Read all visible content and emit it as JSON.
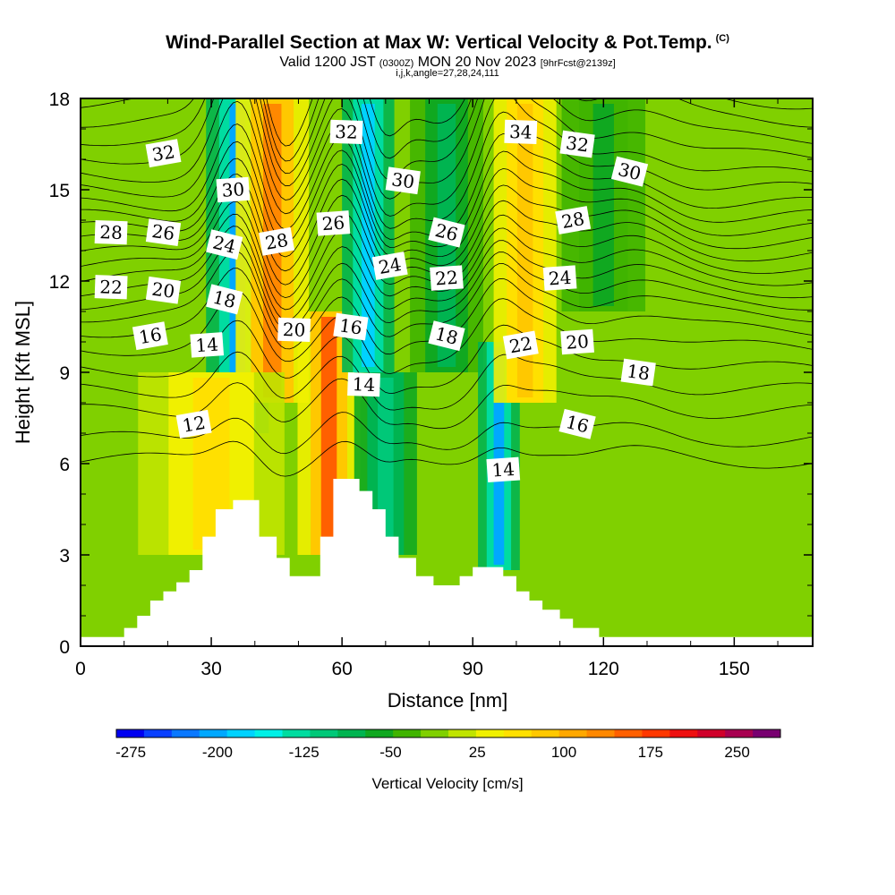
{
  "header": {
    "title": "Wind-Parallel Section at Max W: Vertical Velocity & Pot.Temp.",
    "copyright": "(C)",
    "valid_prefix": "Valid 1200 JST",
    "valid_utc": "(0300Z)",
    "valid_date": "MON 20 Nov 2023",
    "forecast": "[9hrFcst@2139z]",
    "indices": "i,j,k,angle=27,28,24,111"
  },
  "chart_data": {
    "type": "contour",
    "xlabel": "Distance [nm]",
    "ylabel": "Height [Kft MSL]",
    "xlim": [
      0,
      168
    ],
    "ylim": [
      0,
      18
    ],
    "x_ticks": [
      "0",
      "30",
      "60",
      "90",
      "120",
      "150"
    ],
    "y_ticks": [
      "0",
      "3",
      "6",
      "9",
      "12",
      "15",
      "18"
    ],
    "x_tick_values": [
      0,
      30,
      60,
      90,
      120,
      150
    ],
    "y_tick_values": [
      0,
      3,
      6,
      9,
      12,
      15,
      18
    ],
    "colorbar": {
      "title": "Vertical Velocity [cm/s]",
      "labels": [
        "-275",
        "-200",
        "-125",
        "-50",
        "25",
        "100",
        "175",
        "250"
      ],
      "label_values": [
        -275,
        -200,
        -125,
        -50,
        25,
        100,
        175,
        250
      ],
      "min": -287.5,
      "max": 287.5,
      "step": 25,
      "colors": [
        "#0000f0",
        "#0a40ff",
        "#0a78ff",
        "#00a8ff",
        "#00d2ff",
        "#00f0e6",
        "#00dca0",
        "#00c878",
        "#00b450",
        "#10a820",
        "#40b400",
        "#80d000",
        "#c0e400",
        "#f0f000",
        "#ffe000",
        "#ffc800",
        "#ffa800",
        "#ff8800",
        "#ff6000",
        "#ff3800",
        "#ee1010",
        "#d0002a",
        "#a80050",
        "#780070"
      ]
    },
    "terrain_profile": [
      [
        0,
        0.3
      ],
      [
        10,
        0.3
      ],
      [
        10,
        0.6
      ],
      [
        13,
        0.6
      ],
      [
        13,
        1.0
      ],
      [
        16,
        1.0
      ],
      [
        16,
        1.5
      ],
      [
        19,
        1.5
      ],
      [
        19,
        1.8
      ],
      [
        22,
        1.8
      ],
      [
        22,
        2.1
      ],
      [
        25,
        2.1
      ],
      [
        25,
        2.5
      ],
      [
        28,
        2.5
      ],
      [
        28,
        3.6
      ],
      [
        31,
        3.6
      ],
      [
        31,
        4.5
      ],
      [
        35,
        4.5
      ],
      [
        35,
        4.8
      ],
      [
        41,
        4.8
      ],
      [
        41,
        3.6
      ],
      [
        45,
        3.6
      ],
      [
        45,
        2.9
      ],
      [
        48,
        2.9
      ],
      [
        48,
        2.3
      ],
      [
        55,
        2.3
      ],
      [
        55,
        3.6
      ],
      [
        58,
        3.6
      ],
      [
        58,
        5.5
      ],
      [
        64,
        5.5
      ],
      [
        64,
        5.1
      ],
      [
        67,
        5.1
      ],
      [
        67,
        4.5
      ],
      [
        70,
        4.5
      ],
      [
        70,
        3.6
      ],
      [
        73,
        3.6
      ],
      [
        73,
        2.9
      ],
      [
        77,
        2.9
      ],
      [
        77,
        2.3
      ],
      [
        81,
        2.3
      ],
      [
        81,
        2.0
      ],
      [
        87,
        2.0
      ],
      [
        87,
        2.3
      ],
      [
        90,
        2.3
      ],
      [
        90,
        2.6
      ],
      [
        97,
        2.6
      ],
      [
        97,
        2.3
      ],
      [
        100,
        2.3
      ],
      [
        100,
        1.8
      ],
      [
        103,
        1.8
      ],
      [
        103,
        1.5
      ],
      [
        106,
        1.5
      ],
      [
        106,
        1.2
      ],
      [
        110,
        1.2
      ],
      [
        110,
        0.9
      ],
      [
        113,
        0.9
      ],
      [
        113,
        0.6
      ],
      [
        119,
        0.6
      ],
      [
        119,
        0.3
      ],
      [
        168,
        0.3
      ]
    ],
    "vertical_velocity_bands": [
      {
        "x": 36,
        "w": 6,
        "value": -195,
        "z0": 7,
        "z1": 18
      },
      {
        "x": 44,
        "w": 7,
        "value": 140,
        "z0": 8,
        "z1": 18
      },
      {
        "x": 57,
        "w": 6,
        "value": 165,
        "z0": 3,
        "z1": 11
      },
      {
        "x": 66,
        "w": 5,
        "value": -180,
        "z0": 9,
        "z1": 18
      },
      {
        "x": 70,
        "w": 6,
        "value": -110,
        "z0": 3,
        "z1": 9
      },
      {
        "x": 84,
        "w": 7,
        "value": -75,
        "z0": 9,
        "z1": 18
      },
      {
        "x": 96,
        "w": 4,
        "value": -190,
        "z0": 2.5,
        "z1": 10
      },
      {
        "x": 102,
        "w": 6,
        "value": 110,
        "z0": 8,
        "z1": 18
      },
      {
        "x": 30,
        "w": 14,
        "value": 85,
        "z0": 3,
        "z1": 9
      },
      {
        "x": 120,
        "w": 8,
        "value": -50,
        "z0": 11,
        "z1": 18
      }
    ],
    "theta_contours": [
      {
        "value": 12,
        "base": 6.1
      },
      {
        "value": 13,
        "base": 6.8
      },
      {
        "value": 14,
        "base": 7.7
      },
      {
        "value": 15,
        "base": 8.4
      },
      {
        "value": 16,
        "base": 9.1
      },
      {
        "value": 17,
        "base": 9.8
      },
      {
        "value": 18,
        "base": 10.4
      },
      {
        "value": 19,
        "base": 10.9
      },
      {
        "value": 20,
        "base": 11.3
      },
      {
        "value": 21,
        "base": 11.7
      },
      {
        "value": 22,
        "base": 12.1
      },
      {
        "value": 23,
        "base": 12.5
      },
      {
        "value": 24,
        "base": 12.9
      },
      {
        "value": 25,
        "base": 13.3
      },
      {
        "value": 26,
        "base": 13.7
      },
      {
        "value": 27,
        "base": 14.1
      },
      {
        "value": 28,
        "base": 14.5
      },
      {
        "value": 29,
        "base": 15.0
      },
      {
        "value": 30,
        "base": 15.5
      },
      {
        "value": 31,
        "base": 16.1
      },
      {
        "value": 32,
        "base": 16.7
      },
      {
        "value": 33,
        "base": 17.3
      },
      {
        "value": 34,
        "base": 17.9
      }
    ],
    "contour_labels": [
      {
        "text": "32",
        "x": 19,
        "z": 16.2
      },
      {
        "text": "30",
        "x": 35,
        "z": 15.0
      },
      {
        "text": "28",
        "x": 7,
        "z": 13.6
      },
      {
        "text": "26",
        "x": 19,
        "z": 13.6
      },
      {
        "text": "24",
        "x": 33,
        "z": 13.2
      },
      {
        "text": "28",
        "x": 45,
        "z": 13.3
      },
      {
        "text": "26",
        "x": 58,
        "z": 13.9
      },
      {
        "text": "32",
        "x": 61,
        "z": 16.9
      },
      {
        "text": "30",
        "x": 74,
        "z": 15.3
      },
      {
        "text": "26",
        "x": 84,
        "z": 13.6
      },
      {
        "text": "24",
        "x": 71,
        "z": 12.5
      },
      {
        "text": "22",
        "x": 84,
        "z": 12.1
      },
      {
        "text": "34",
        "x": 101,
        "z": 16.9
      },
      {
        "text": "32",
        "x": 114,
        "z": 16.5
      },
      {
        "text": "30",
        "x": 126,
        "z": 15.6
      },
      {
        "text": "28",
        "x": 113,
        "z": 14.0
      },
      {
        "text": "24",
        "x": 110,
        "z": 12.1
      },
      {
        "text": "22",
        "x": 7,
        "z": 11.8
      },
      {
        "text": "20",
        "x": 19,
        "z": 11.7
      },
      {
        "text": "18",
        "x": 33,
        "z": 11.4
      },
      {
        "text": "16",
        "x": 16,
        "z": 10.2
      },
      {
        "text": "14",
        "x": 29,
        "z": 9.9
      },
      {
        "text": "20",
        "x": 49,
        "z": 10.4
      },
      {
        "text": "16",
        "x": 62,
        "z": 10.5
      },
      {
        "text": "18",
        "x": 84,
        "z": 10.2
      },
      {
        "text": "22",
        "x": 101,
        "z": 9.9
      },
      {
        "text": "20",
        "x": 114,
        "z": 10.0
      },
      {
        "text": "14",
        "x": 65,
        "z": 8.6
      },
      {
        "text": "18",
        "x": 128,
        "z": 9.0
      },
      {
        "text": "16",
        "x": 114,
        "z": 7.3
      },
      {
        "text": "12",
        "x": 26,
        "z": 7.3
      },
      {
        "text": "14",
        "x": 97,
        "z": 5.8
      }
    ]
  }
}
